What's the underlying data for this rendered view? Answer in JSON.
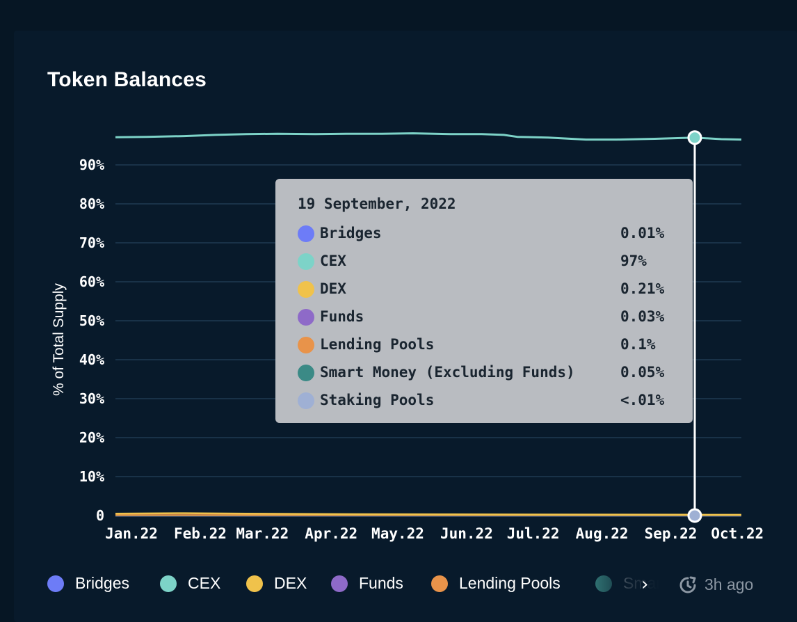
{
  "card": {
    "title": "Token Balances"
  },
  "chart_data": {
    "type": "line",
    "ylabel": "% of Total Supply",
    "xlabel": "",
    "yticks": [
      "0",
      "10%",
      "20%",
      "30%",
      "40%",
      "50%",
      "60%",
      "70%",
      "80%",
      "90%"
    ],
    "ylim": [
      0,
      100
    ],
    "x_tick_labels": [
      "Jan.22",
      "Feb.22",
      "Mar.22",
      "Apr.22",
      "May.22",
      "Jun.22",
      "Jul.22",
      "Aug.22",
      "Sep.22",
      "Oct.22"
    ],
    "x_tick_dates": [
      "2022-01-01",
      "2022-02-01",
      "2022-03-01",
      "2022-04-01",
      "2022-05-01",
      "2022-06-01",
      "2022-07-01",
      "2022-08-01",
      "2022-09-01",
      "2022-10-01"
    ],
    "xlim": [
      "2022-01-01",
      "2022-10-10"
    ],
    "grid": true,
    "series": [
      {
        "name": "Bridges",
        "color": "#6d7cf7",
        "points": [
          [
            "2022-01-01",
            0.01
          ],
          [
            "2022-10-10",
            0.01
          ]
        ]
      },
      {
        "name": "CEX",
        "color": "#7dd3c8",
        "points": [
          [
            "2022-01-01",
            97.1
          ],
          [
            "2022-01-15",
            97.2
          ],
          [
            "2022-02-01",
            97.4
          ],
          [
            "2022-02-15",
            97.7
          ],
          [
            "2022-03-01",
            97.9
          ],
          [
            "2022-03-15",
            98.0
          ],
          [
            "2022-04-01",
            97.9
          ],
          [
            "2022-04-15",
            98.0
          ],
          [
            "2022-05-01",
            98.0
          ],
          [
            "2022-05-15",
            98.1
          ],
          [
            "2022-06-01",
            97.9
          ],
          [
            "2022-06-15",
            97.9
          ],
          [
            "2022-06-25",
            97.7
          ],
          [
            "2022-07-01",
            97.2
          ],
          [
            "2022-07-15",
            97.0
          ],
          [
            "2022-08-01",
            96.5
          ],
          [
            "2022-08-15",
            96.5
          ],
          [
            "2022-09-01",
            96.7
          ],
          [
            "2022-09-19",
            97.0
          ],
          [
            "2022-10-01",
            96.6
          ],
          [
            "2022-10-10",
            96.5
          ]
        ]
      },
      {
        "name": "DEX",
        "color": "#f0c24b",
        "points": [
          [
            "2022-01-01",
            0.5
          ],
          [
            "2022-02-01",
            0.6
          ],
          [
            "2022-03-01",
            0.5
          ],
          [
            "2022-04-01",
            0.4
          ],
          [
            "2022-06-01",
            0.3
          ],
          [
            "2022-09-19",
            0.21
          ],
          [
            "2022-10-10",
            0.2
          ]
        ]
      },
      {
        "name": "Funds",
        "color": "#8e6ac8",
        "points": [
          [
            "2022-01-01",
            0.03
          ],
          [
            "2022-10-10",
            0.03
          ]
        ]
      },
      {
        "name": "Lending Pools",
        "color": "#e8934a",
        "points": [
          [
            "2022-01-01",
            0.1
          ],
          [
            "2022-10-10",
            0.1
          ]
        ]
      },
      {
        "name": "Smart Money (Excluding Funds)",
        "color": "#3b8a86",
        "points": [
          [
            "2022-01-01",
            0.05
          ],
          [
            "2022-10-10",
            0.05
          ]
        ]
      },
      {
        "name": "Staking Pools",
        "color": "#9fb0d4",
        "points": [
          [
            "2022-01-01",
            0.0
          ],
          [
            "2022-10-10",
            0.0
          ]
        ]
      }
    ],
    "hover": {
      "date": "2022-09-19",
      "cex_value": 97,
      "staking_value": 0
    }
  },
  "tooltip": {
    "date": "19 September, 2022",
    "rows": [
      {
        "name": "Bridges",
        "value": "0.01%",
        "color": "#6d7cf7"
      },
      {
        "name": "CEX",
        "value": "97%",
        "color": "#7dd3c8"
      },
      {
        "name": "DEX",
        "value": "0.21%",
        "color": "#f0c24b"
      },
      {
        "name": "Funds",
        "value": "0.03%",
        "color": "#8e6ac8"
      },
      {
        "name": "Lending Pools",
        "value": "0.1%",
        "color": "#e8934a"
      },
      {
        "name": "Smart Money (Excluding Funds)",
        "value": "0.05%",
        "color": "#3b8a86"
      },
      {
        "name": "Staking Pools",
        "value": "<.01%",
        "color": "#9fb0d4"
      }
    ]
  },
  "legend": {
    "items": [
      {
        "label": "Bridges",
        "color": "#6d7cf7"
      },
      {
        "label": "CEX",
        "color": "#7dd3c8"
      },
      {
        "label": "DEX",
        "color": "#f0c24b"
      },
      {
        "label": "Funds",
        "color": "#8e6ac8"
      },
      {
        "label": "Lending Pools",
        "color": "#e8934a"
      },
      {
        "label": "Smart Money (Excluding Funds)",
        "color": "#3b8a86"
      }
    ],
    "next_icon": "chevron-right-icon"
  },
  "status": {
    "updated": "3h ago",
    "icon": "clock-refresh-icon"
  }
}
